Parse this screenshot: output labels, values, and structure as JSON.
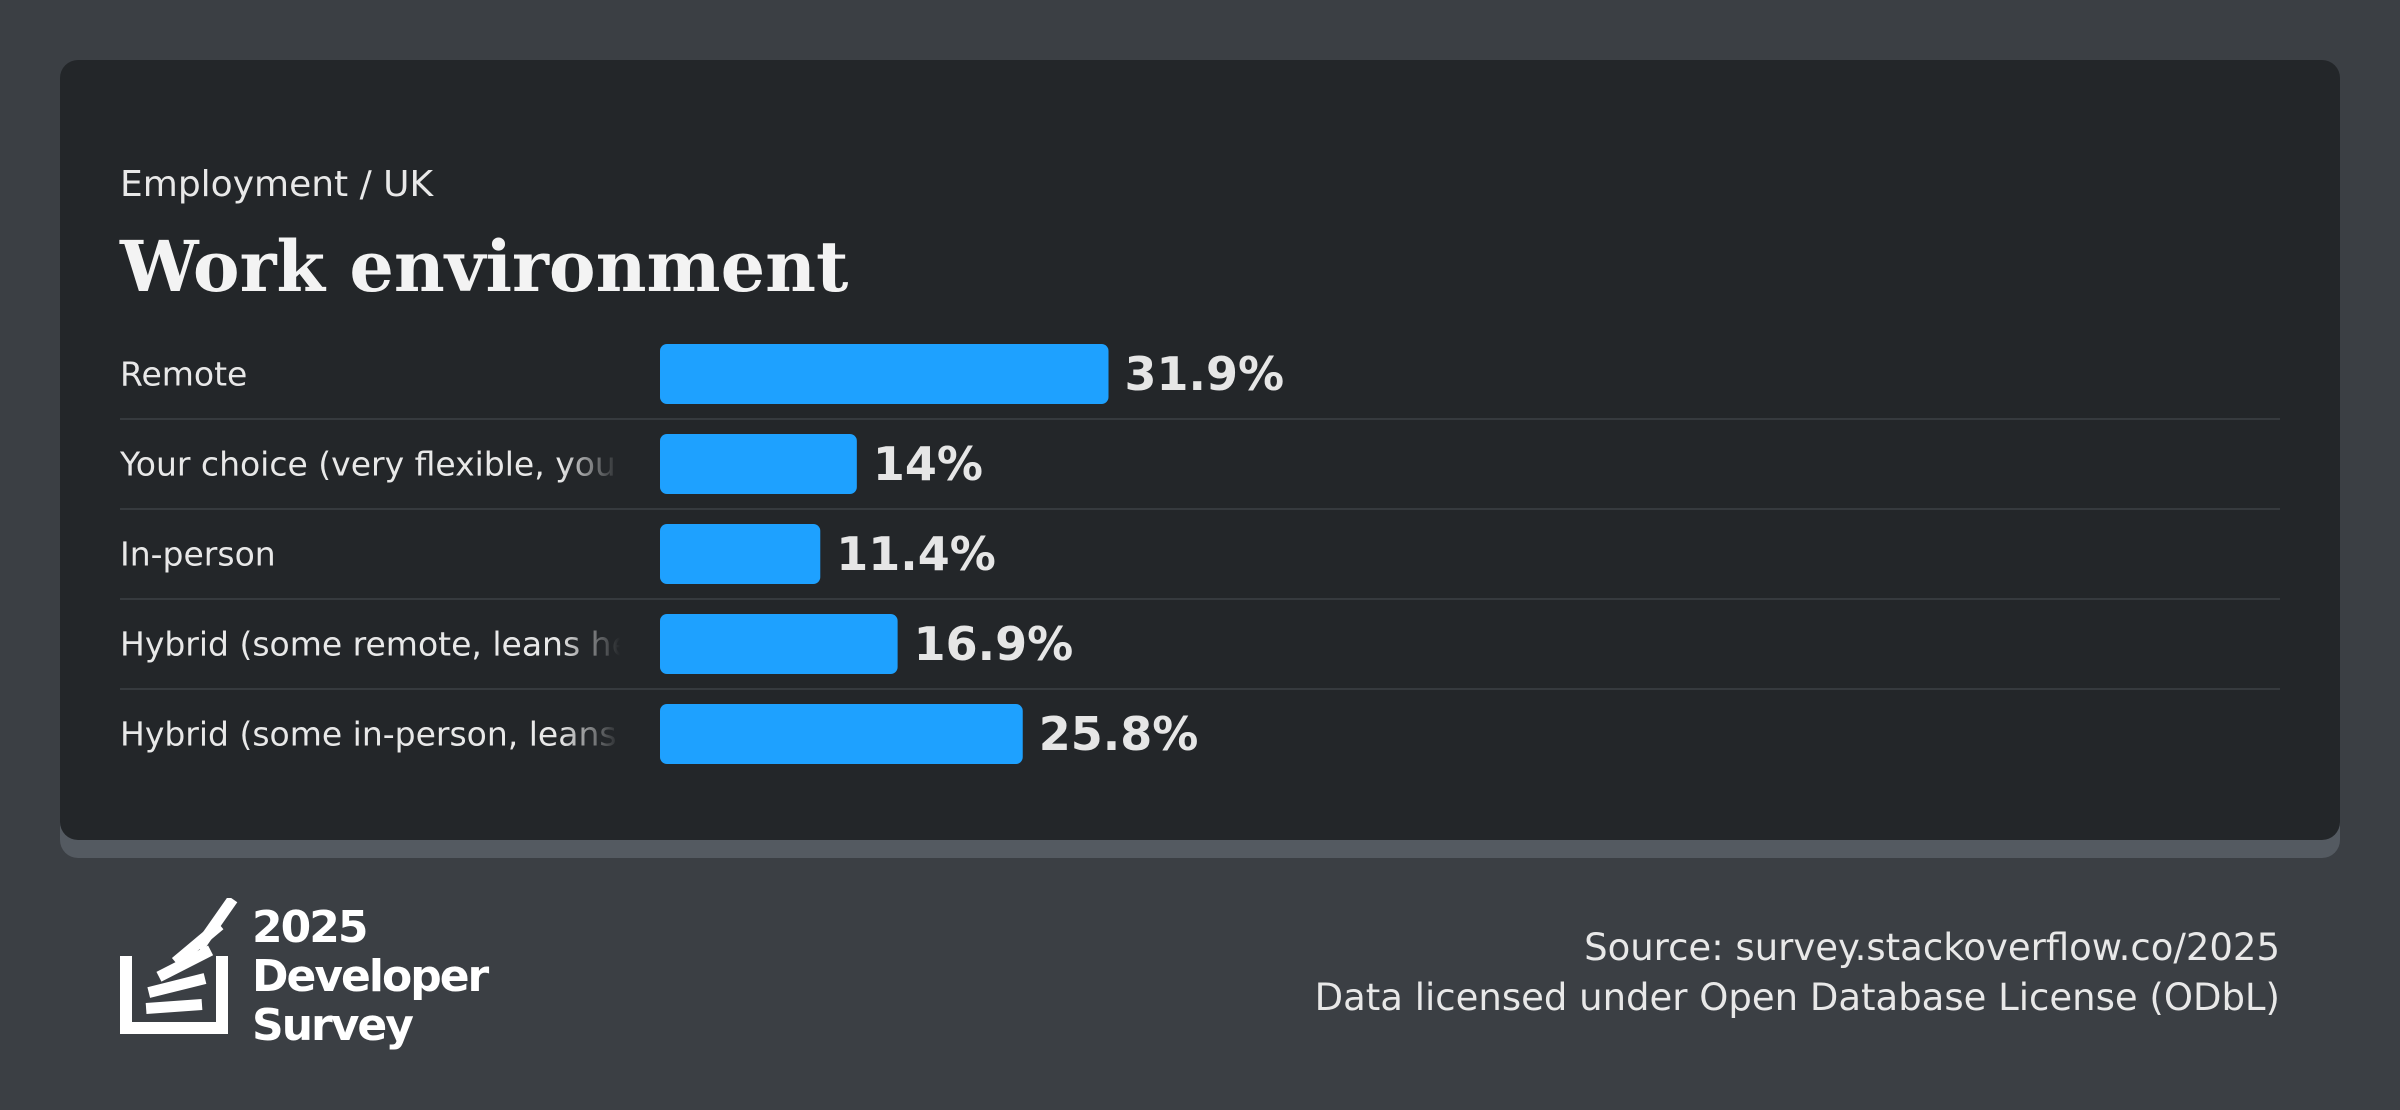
{
  "breadcrumb": "Employment / UK",
  "title": "Work environment",
  "chart_data": {
    "type": "bar",
    "orientation": "horizontal",
    "categories": [
      "Remote",
      "Your choice (very flexible, you",
      "In-person",
      "Hybrid (some remote, leans he",
      "Hybrid (some in-person, leans"
    ],
    "values": [
      31.9,
      14,
      11.4,
      16.9,
      25.8
    ],
    "value_labels": [
      "31.9%",
      "14%",
      "11.4%",
      "16.9%",
      "25.8%"
    ],
    "unit": "%",
    "bar_color": "#1ea1ff",
    "xlim": [
      0,
      100
    ],
    "grid": false,
    "legend": "none"
  },
  "footer": {
    "logo": {
      "year": "2025",
      "line1": "Developer",
      "line2": "Survey"
    },
    "source": "Source: survey.stackoverflow.co/2025",
    "license": "Data licensed under Open Database License (ODbL)"
  },
  "colors": {
    "background": "#3b3f44",
    "card": "#232629",
    "card_shadow": "#545a61",
    "divider": "#363a3e",
    "bar": "#1ea1ff",
    "text": "#e8e8e8",
    "value_text": "#e6e6e6"
  }
}
